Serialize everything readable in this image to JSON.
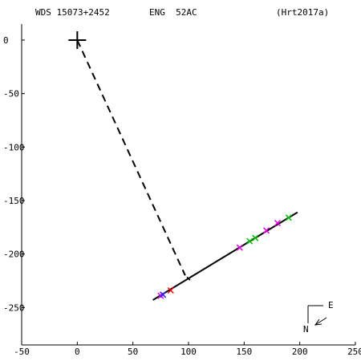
{
  "header": {
    "star_id": "WDS 15073+2452",
    "discoverer": "ENG  52AC",
    "reference": "(Hrt2017a)"
  },
  "chart_data": {
    "type": "scatter",
    "title": "",
    "xlabel": "",
    "ylabel": "",
    "xlim": [
      -50,
      250
    ],
    "ylim": [
      -285,
      15
    ],
    "x_ticks": [
      -50,
      0,
      50,
      100,
      150,
      200,
      250
    ],
    "y_ticks": [
      0,
      -50,
      -100,
      -150,
      -200,
      -250
    ],
    "x_tick_labels": [
      "-50",
      "0",
      "50",
      "100",
      "150",
      "200",
      "250"
    ],
    "y_tick_labels": [
      "0",
      "-50",
      "-100",
      "-150",
      "-200",
      "-250"
    ],
    "primary": {
      "x": 0,
      "y": 0
    },
    "orbit_line": {
      "from": [
        68,
        -243
      ],
      "to": [
        198,
        -161
      ]
    },
    "dashed_connector": {
      "from": [
        0,
        0
      ],
      "to": [
        97,
        -220
      ]
    },
    "tick_mark": {
      "x": 100,
      "y": -223
    },
    "series": [
      {
        "marker": "x",
        "color": "#e000e0",
        "points": [
          [
            75,
            -239
          ],
          [
            146,
            -194
          ],
          [
            170,
            -178
          ],
          [
            180,
            -171
          ]
        ]
      },
      {
        "marker": "x",
        "color": "#00c000",
        "points": [
          [
            155,
            -188
          ],
          [
            160,
            -185
          ],
          [
            190,
            -166
          ]
        ]
      },
      {
        "marker": "x",
        "color": "#ff0000",
        "points": [
          [
            84,
            -234
          ]
        ]
      },
      {
        "marker": "x",
        "color": "#2020ff",
        "points": [
          [
            77,
            -238
          ]
        ]
      }
    ],
    "compass": {
      "north_label": "N",
      "east_label": "E"
    }
  }
}
